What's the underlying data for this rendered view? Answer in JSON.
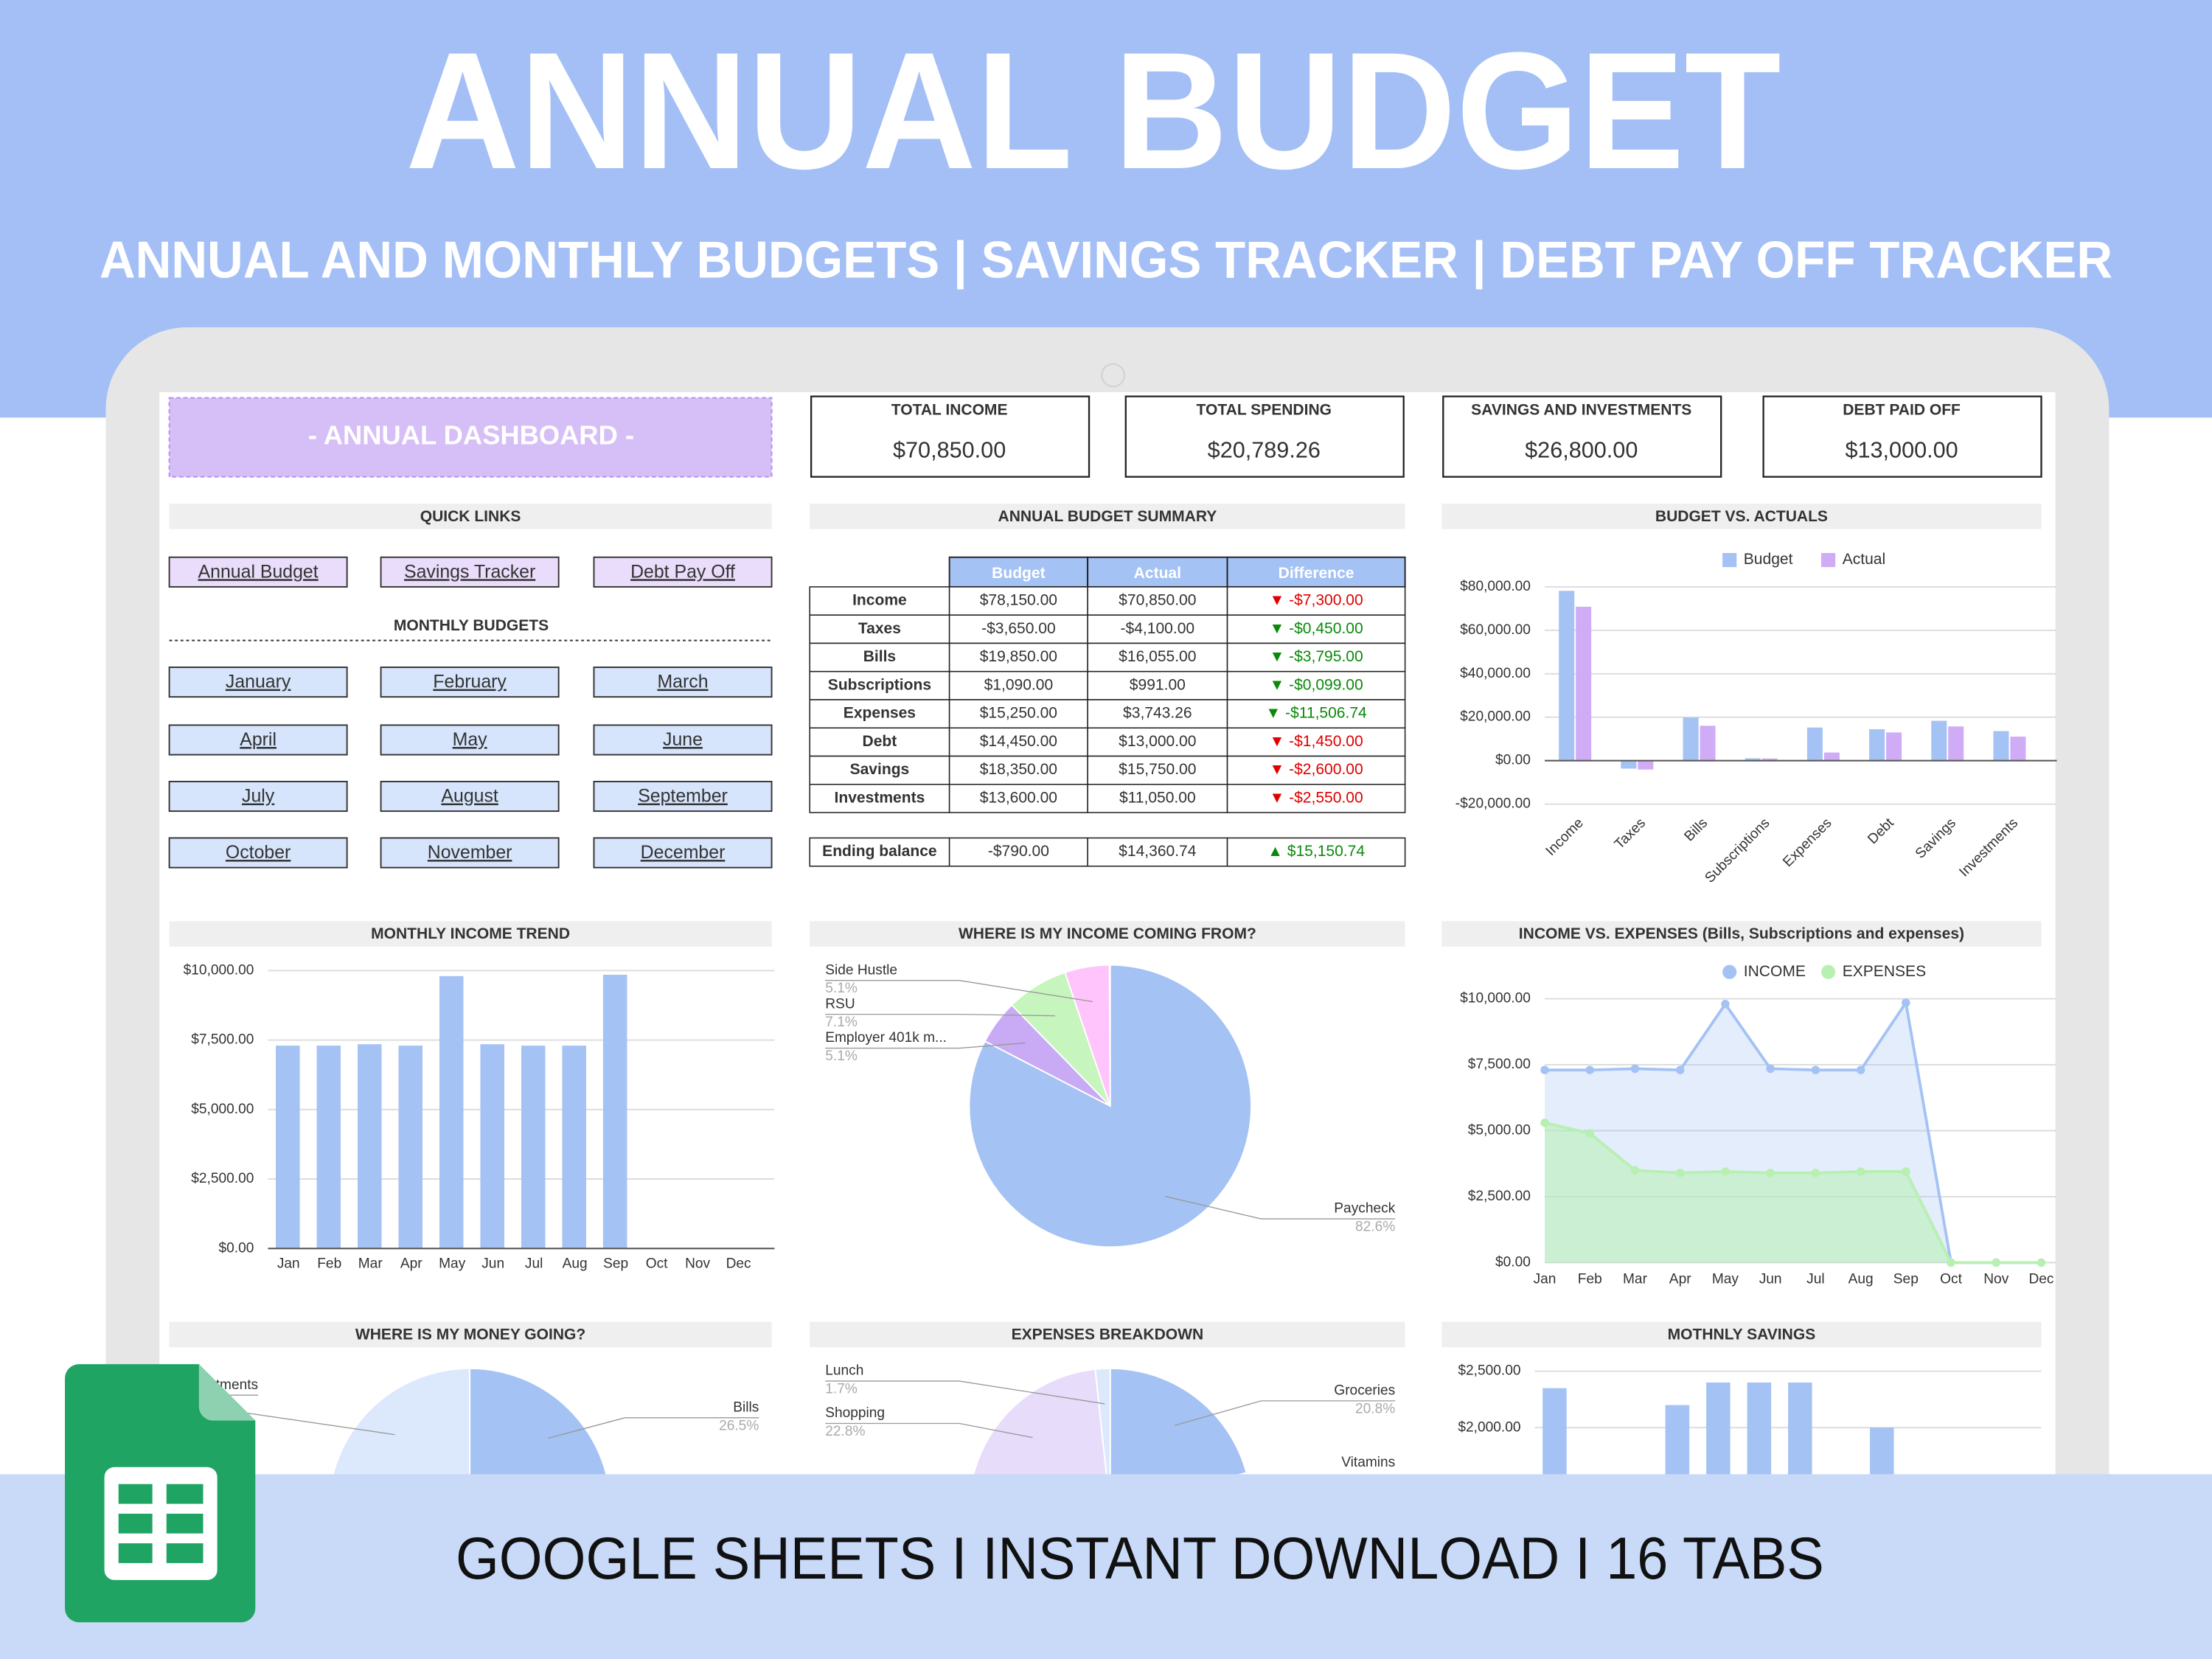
{
  "header": {
    "title": "ANNUAL BUDGET",
    "subtitle": "ANNUAL AND MONTHLY BUDGETS | SAVINGS TRACKER | DEBT PAY OFF TRACKER"
  },
  "dashboard": {
    "title": "- ANNUAL DASHBOARD -"
  },
  "kpis": [
    {
      "label": "TOTAL INCOME",
      "value": "$70,850.00"
    },
    {
      "label": "TOTAL SPENDING",
      "value": "$20,789.26"
    },
    {
      "label": "SAVINGS AND INVESTMENTS",
      "value": "$26,800.00"
    },
    {
      "label": "DEBT PAID OFF",
      "value": "$13,000.00"
    }
  ],
  "quick_links": {
    "title": "QUICK LINKS",
    "links": [
      "Annual Budget",
      "Savings Tracker",
      "Debt Pay Off"
    ]
  },
  "monthly_budgets": {
    "title": "MONTHLY BUDGETS",
    "months": [
      "January",
      "February",
      "March",
      "April",
      "May",
      "June",
      "July",
      "August",
      "September",
      "October",
      "November",
      "December"
    ]
  },
  "summary": {
    "title": "ANNUAL BUDGET SUMMARY",
    "columns": [
      "Budget",
      "Actual",
      "Difference"
    ],
    "rows": [
      [
        "Income",
        "$78,150.00",
        "$70,850.00",
        "▼ -$7,300.00"
      ],
      [
        "Taxes",
        "-$3,650.00",
        "-$4,100.00",
        "▼ -$0,450.00"
      ],
      [
        "Bills",
        "$19,850.00",
        "$16,055.00",
        "▼ -$3,795.00"
      ],
      [
        "Subscriptions",
        "$1,090.00",
        "$991.00",
        "▼ -$0,099.00"
      ],
      [
        "Expenses",
        "$15,250.00",
        "$3,743.26",
        "▼ -$11,506.74"
      ],
      [
        "Debt",
        "$14,450.00",
        "$13,000.00",
        "▼ -$1,450.00"
      ],
      [
        "Savings",
        "$18,350.00",
        "$15,750.00",
        "▼ -$2,600.00"
      ],
      [
        "Investments",
        "$13,600.00",
        "$11,050.00",
        "▼ -$2,550.00"
      ]
    ],
    "difference_colors": [
      "#e00000",
      "#0a8a0a",
      "#0a8a0a",
      "#0a8a0a",
      "#0a8a0a",
      "#e00000",
      "#e00000",
      "#e00000"
    ],
    "ending": [
      "Ending balance",
      "-$790.00",
      "$14,360.74",
      "▲ $15,150.74"
    ],
    "ending_color": "#0a8a0a"
  },
  "chart_data": [
    {
      "type": "bar",
      "title": "BUDGET VS. ACTUALS",
      "categories": [
        "Income",
        "Taxes",
        "Bills",
        "Subscriptions",
        "Expenses",
        "Debt",
        "Savings",
        "Investments"
      ],
      "series": [
        {
          "name": "Budget",
          "color": "#a4c2f4",
          "values": [
            78150,
            -3650,
            19850,
            1090,
            15250,
            14450,
            18350,
            13600
          ]
        },
        {
          "name": "Actual",
          "color": "#d0acf7",
          "values": [
            70850,
            -4100,
            16055,
            991,
            3743.26,
            13000,
            15750,
            11050
          ]
        }
      ],
      "ylim": [
        -20000,
        80000
      ],
      "yticks": [
        {
          "value": -20000,
          "label": "-$20,000.00"
        },
        {
          "value": 0,
          "label": "$0.00"
        },
        {
          "value": 20000,
          "label": "$20,000.00"
        },
        {
          "value": 40000,
          "label": "$40,000.00"
        },
        {
          "value": 60000,
          "label": "$60,000.00"
        },
        {
          "value": 80000,
          "label": "$80,000.00"
        }
      ],
      "grid": true,
      "legend": "top"
    },
    {
      "type": "bar",
      "title": "MONTHLY INCOME TREND",
      "categories": [
        "Jan",
        "Feb",
        "Mar",
        "Apr",
        "May",
        "Jun",
        "Jul",
        "Aug",
        "Sep",
        "Oct",
        "Nov",
        "Dec"
      ],
      "values": [
        7300,
        7300,
        7350,
        7300,
        9800,
        7350,
        7300,
        7300,
        9850,
        0,
        0,
        0
      ],
      "color": "#a4c2f4",
      "ylim": [
        0,
        10000
      ],
      "yticks": [
        {
          "value": 0,
          "label": "$0.00"
        },
        {
          "value": 2500,
          "label": "$2,500.00"
        },
        {
          "value": 5000,
          "label": "$5,000.00"
        },
        {
          "value": 7500,
          "label": "$7,500.00"
        },
        {
          "value": 10000,
          "label": "$10,000.00"
        }
      ],
      "grid": true
    },
    {
      "type": "pie",
      "title": "WHERE IS MY INCOME COMING FROM?",
      "labels": [
        "Paycheck",
        "Employer 401k m...",
        "RSU",
        "Side Hustle"
      ],
      "values": [
        82.6,
        5.1,
        7.1,
        5.1
      ],
      "value_labels": [
        "82.6%",
        "5.1%",
        "7.1%",
        "5.1%"
      ],
      "colors": [
        "#a4c2f4",
        "#c9aaf5",
        "#c6f5bd",
        "#ffc4fb"
      ]
    },
    {
      "type": "area",
      "title": "INCOME VS. EXPENSES (Bills, Subscriptions and expenses)",
      "x": [
        "Jan",
        "Feb",
        "Mar",
        "Apr",
        "May",
        "Jun",
        "Jul",
        "Aug",
        "Sep",
        "Oct",
        "Nov",
        "Dec"
      ],
      "series": [
        {
          "name": "INCOME",
          "color": "#a4c2f4",
          "values": [
            7300,
            7300,
            7350,
            7300,
            9800,
            7350,
            7300,
            7300,
            9850,
            0,
            0,
            0
          ]
        },
        {
          "name": "EXPENSES",
          "color": "#b7f0b1",
          "values": [
            5300,
            4900,
            3500,
            3400,
            3450,
            3400,
            3400,
            3450,
            3450,
            0,
            0,
            0
          ]
        }
      ],
      "ylim": [
        0,
        10000
      ],
      "yticks": [
        {
          "value": 0,
          "label": "$0.00"
        },
        {
          "value": 2500,
          "label": "$2,500.00"
        },
        {
          "value": 5000,
          "label": "$5,000.00"
        },
        {
          "value": 7500,
          "label": "$7,500.00"
        },
        {
          "value": 10000,
          "label": "$10,000.00"
        }
      ],
      "grid": true,
      "legend": "top"
    },
    {
      "type": "pie",
      "title": "WHERE IS MY MONEY GOING?",
      "labels": [
        "Bills",
        "Investments"
      ],
      "values": [
        26.5,
        25
      ],
      "value_labels": [
        "26.5%",
        null
      ],
      "colors": [
        "#a4c2f4",
        "#dce8fc"
      ]
    },
    {
      "type": "pie",
      "title": "EXPENSES BREAKDOWN",
      "labels": [
        "Groceries",
        "Vitamins",
        "Shopping",
        "Lunch"
      ],
      "values": [
        20.8,
        null,
        22.8,
        1.7
      ],
      "value_labels": [
        "20.8%",
        null,
        "22.8%",
        "1.7%"
      ],
      "colors": [
        "#a4c2f4",
        "#8fb0ee",
        "#e8dcfb",
        "#dce8fc"
      ]
    },
    {
      "type": "bar",
      "title": "MOTHNLY SAVINGS",
      "categories": [
        null,
        null,
        null,
        null,
        null,
        null,
        null,
        null,
        null,
        null,
        null,
        null
      ],
      "values": [
        2350,
        0,
        0,
        2200,
        2400,
        2400,
        2400,
        0,
        2000,
        0,
        0,
        0
      ],
      "color": "#a4c2f4",
      "ylim": [
        0,
        2500
      ],
      "yticks": [
        {
          "value": 2000,
          "label": "$2,000.00"
        },
        {
          "value": 2500,
          "label": "$2,500.00"
        }
      ],
      "grid": true
    }
  ],
  "footer": {
    "text": "GOOGLE SHEETS I INSTANT DOWNLOAD I 16 TABS"
  }
}
